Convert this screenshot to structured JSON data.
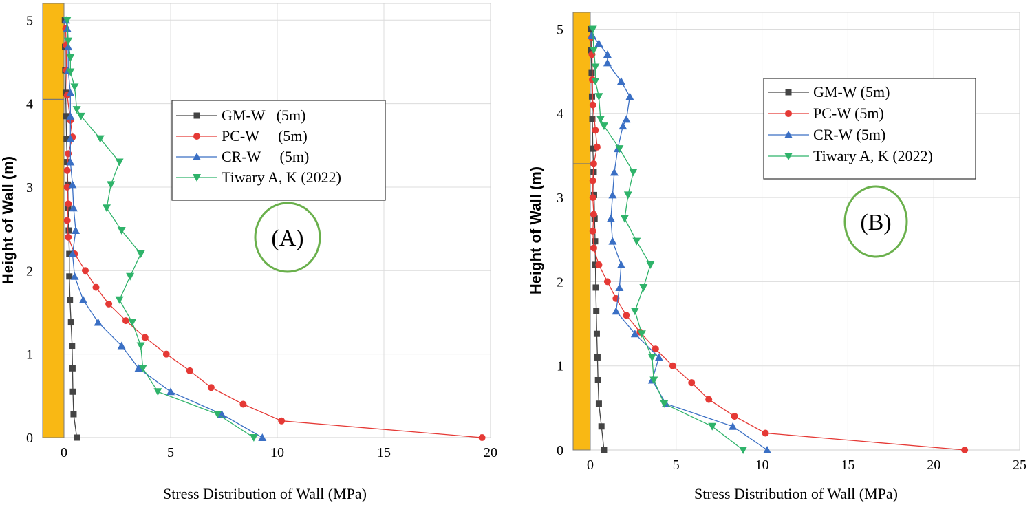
{
  "colors": {
    "gm": "#444444",
    "pc": "#e53935",
    "cr": "#3a6fc4",
    "tiwary": "#2fb36a",
    "wall": "#f9b814",
    "panel_circle": "#6ab04c",
    "grid": "#dcdcdc"
  },
  "chart_data": [
    {
      "id": "A",
      "type": "line",
      "panel_label": "(A)",
      "xlabel": "Stress Distribution of Wall (MPa)",
      "ylabel": "Height of Wall (m)",
      "xlim": [
        -1,
        20
      ],
      "ylim": [
        0,
        5.2
      ],
      "xticks": [
        0,
        5,
        10,
        15,
        20
      ],
      "yticks": [
        0,
        1,
        2,
        3,
        4,
        5
      ],
      "xtick_labels": [
        "0",
        "5",
        "10",
        "15",
        "20"
      ],
      "ytick_labels": [
        "0",
        "1",
        "2",
        "3",
        "4",
        "5"
      ],
      "grid": true,
      "legend_position": "upper-middle",
      "wall_divider_y": 4.05,
      "series": [
        {
          "key": "gm",
          "name": "GM-W   (5m)",
          "marker": "square",
          "y": [
            0,
            0.28,
            0.55,
            0.83,
            1.1,
            1.38,
            1.65,
            1.93,
            2.2,
            2.48,
            2.75,
            3.03,
            3.3,
            3.58,
            3.85,
            4.13,
            4.4,
            4.68,
            5.0
          ],
          "x": [
            0.6,
            0.45,
            0.42,
            0.4,
            0.38,
            0.33,
            0.28,
            0.25,
            0.25,
            0.22,
            0.2,
            0.18,
            0.15,
            0.12,
            0.1,
            0.08,
            0.06,
            0.05,
            0.04
          ]
        },
        {
          "key": "pc",
          "name": "PC-W     (5m)",
          "marker": "circle",
          "y": [
            0,
            0.2,
            0.4,
            0.6,
            0.8,
            1.0,
            1.2,
            1.4,
            1.6,
            1.8,
            2.0,
            2.2,
            2.4,
            2.6,
            2.8,
            3.0,
            3.2,
            3.4,
            3.6,
            3.8,
            4.1,
            4.4,
            4.7,
            4.9
          ],
          "x": [
            19.6,
            10.2,
            8.4,
            6.9,
            5.9,
            4.8,
            3.8,
            2.9,
            2.1,
            1.5,
            1.0,
            0.5,
            0.2,
            0.15,
            0.2,
            0.15,
            0.15,
            0.2,
            0.4,
            0.3,
            0.15,
            0.12,
            0.1,
            0.08
          ]
        },
        {
          "key": "cr",
          "name": "CR-W     (5m)",
          "marker": "triangle-up",
          "y": [
            0,
            0.28,
            0.55,
            0.83,
            1.1,
            1.38,
            1.65,
            1.93,
            2.2,
            2.48,
            2.75,
            3.03,
            3.3,
            3.58,
            3.85,
            4.13,
            4.4,
            4.68,
            4.9,
            5.0
          ],
          "x": [
            9.3,
            7.4,
            5.0,
            3.5,
            2.7,
            1.6,
            0.9,
            0.5,
            0.4,
            0.55,
            0.45,
            0.4,
            0.3,
            0.3,
            0.3,
            0.3,
            0.2,
            0.2,
            0.15,
            0.1
          ]
        },
        {
          "key": "tiwary",
          "name": "Tiwary A, K (2022)",
          "marker": "triangle-down",
          "y": [
            0,
            0.28,
            0.55,
            0.83,
            1.1,
            1.38,
            1.65,
            1.93,
            2.2,
            2.48,
            2.75,
            3.03,
            3.3,
            3.58,
            3.85,
            3.93,
            4.2,
            4.38,
            4.55,
            4.75,
            5.0
          ],
          "x": [
            8.9,
            7.2,
            4.4,
            3.7,
            3.6,
            3.2,
            2.6,
            3.1,
            3.6,
            2.7,
            2.0,
            2.2,
            2.6,
            1.7,
            0.8,
            0.6,
            0.5,
            0.3,
            0.3,
            0.2,
            0.15
          ]
        }
      ]
    },
    {
      "id": "B",
      "type": "line",
      "panel_label": "(B)",
      "xlabel": "Stress Distribution of Wall (MPa)",
      "ylabel": "Height of Wall (m)",
      "xlim": [
        -1,
        25
      ],
      "ylim": [
        0,
        5.2
      ],
      "xticks": [
        0,
        5,
        10,
        15,
        20,
        25
      ],
      "yticks": [
        0,
        1,
        2,
        3,
        4,
        5
      ],
      "xtick_labels": [
        "0",
        "5",
        "10",
        "15",
        "20",
        "25"
      ],
      "ytick_labels": [
        "0",
        "1",
        "2",
        "3",
        "4",
        "5"
      ],
      "grid": true,
      "legend_position": "upper-middle",
      "wall_divider_y": 3.4,
      "series": [
        {
          "key": "gm",
          "name": "GM-W (5m)",
          "marker": "square",
          "y": [
            0,
            0.28,
            0.55,
            0.83,
            1.1,
            1.38,
            1.65,
            1.93,
            2.2,
            2.48,
            2.75,
            3.03,
            3.3,
            3.58,
            3.93,
            4.2,
            4.48,
            4.75,
            5.0
          ],
          "x": [
            0.8,
            0.65,
            0.5,
            0.45,
            0.42,
            0.38,
            0.35,
            0.32,
            0.3,
            0.28,
            0.25,
            0.22,
            0.2,
            0.15,
            0.12,
            0.1,
            0.08,
            0.05,
            0.05
          ]
        },
        {
          "key": "pc",
          "name": "PC-W (5m)",
          "marker": "circle",
          "y": [
            0,
            0.2,
            0.4,
            0.6,
            0.8,
            1.0,
            1.2,
            1.4,
            1.6,
            1.8,
            2.0,
            2.2,
            2.4,
            2.6,
            2.8,
            3.0,
            3.2,
            3.4,
            3.6,
            3.8,
            4.1,
            4.4,
            4.7,
            4.9
          ],
          "x": [
            21.8,
            10.2,
            8.4,
            6.9,
            5.9,
            4.8,
            3.8,
            2.9,
            2.1,
            1.5,
            1.0,
            0.5,
            0.2,
            0.15,
            0.2,
            0.15,
            0.15,
            0.2,
            0.4,
            0.3,
            0.15,
            0.12,
            0.1,
            0.08
          ]
        },
        {
          "key": "cr",
          "name": "CR-W (5m)",
          "marker": "triangle-up",
          "y": [
            0,
            0.28,
            0.55,
            0.83,
            1.1,
            1.38,
            1.65,
            1.93,
            2.2,
            2.48,
            2.75,
            3.03,
            3.3,
            3.58,
            3.85,
            3.93,
            4.2,
            4.38,
            4.6,
            4.7,
            4.83,
            4.93
          ],
          "x": [
            10.3,
            8.3,
            4.4,
            3.6,
            4.0,
            2.6,
            1.5,
            1.7,
            1.8,
            1.3,
            1.2,
            1.3,
            1.4,
            1.6,
            1.9,
            2.1,
            2.3,
            1.8,
            1.0,
            1.0,
            0.5,
            0.1
          ]
        },
        {
          "key": "tiwary",
          "name": "Tiwary A, K (2022)",
          "marker": "triangle-down",
          "y": [
            0,
            0.28,
            0.55,
            0.83,
            1.1,
            1.38,
            1.65,
            1.93,
            2.2,
            2.48,
            2.75,
            3.03,
            3.3,
            3.58,
            3.85,
            3.93,
            4.2,
            4.38,
            4.55,
            4.75,
            5.0
          ],
          "x": [
            8.9,
            7.1,
            4.3,
            3.7,
            3.6,
            3.0,
            2.6,
            3.1,
            3.5,
            2.7,
            2.0,
            2.2,
            2.5,
            1.7,
            0.8,
            0.6,
            0.5,
            0.3,
            0.3,
            0.2,
            0.15
          ]
        }
      ]
    }
  ]
}
